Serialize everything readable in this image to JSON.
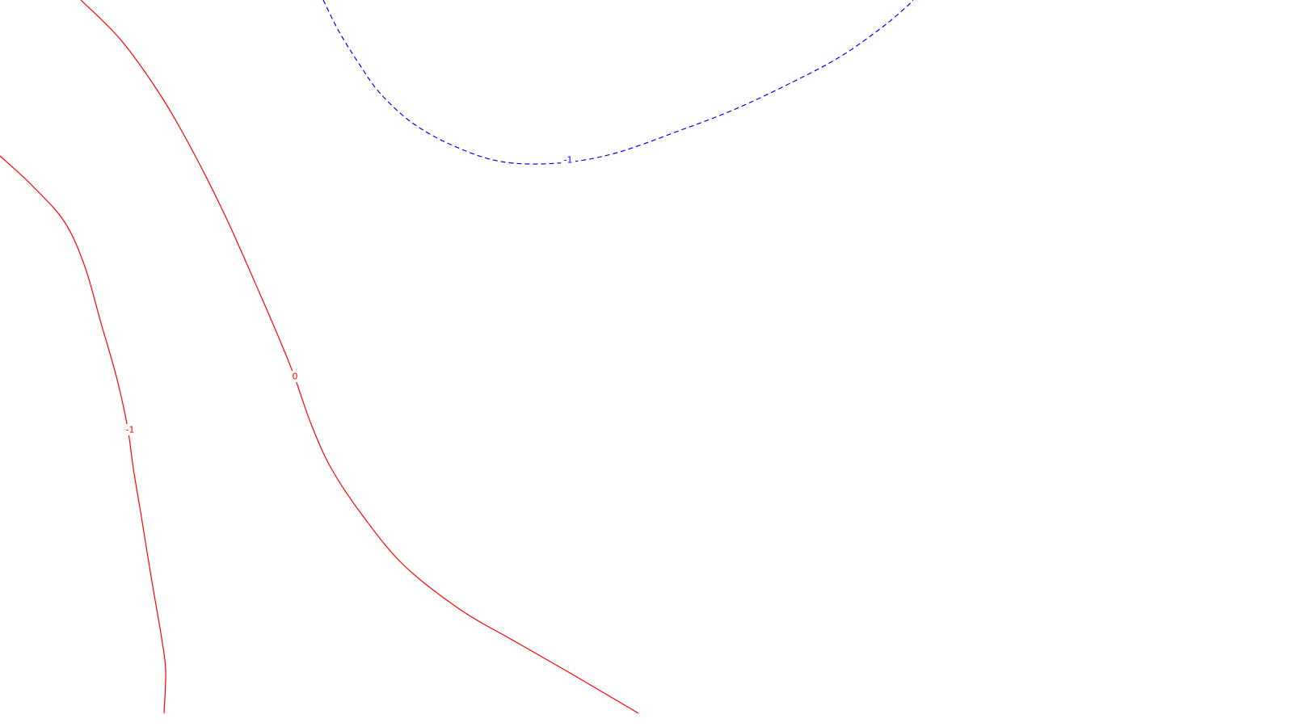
{
  "chart_data": {
    "type": "contour",
    "title": "",
    "xlabel": "",
    "ylabel": "",
    "grid": false,
    "legend": "none",
    "series": [
      {
        "level_label": "0",
        "color": "#ff0000",
        "style": "solid",
        "points": [
          [
            100,
            0
          ],
          [
            150,
            50
          ],
          [
            200,
            120
          ],
          [
            240,
            190
          ],
          [
            280,
            270
          ],
          [
            320,
            360
          ],
          [
            350,
            430
          ],
          [
            365,
            468
          ],
          [
            385,
            525
          ],
          [
            410,
            580
          ],
          [
            450,
            640
          ],
          [
            500,
            700
          ],
          [
            570,
            755
          ],
          [
            630,
            790
          ],
          [
            700,
            830
          ],
          [
            790,
            883
          ]
        ],
        "label_at": [
          365,
          466
        ]
      },
      {
        "level_label": "-1",
        "color": "#ff0000",
        "style": "solid",
        "points": [
          [
            0,
            193
          ],
          [
            40,
            230
          ],
          [
            80,
            275
          ],
          [
            105,
            330
          ],
          [
            125,
            400
          ],
          [
            145,
            470
          ],
          [
            158,
            530
          ],
          [
            165,
            580
          ],
          [
            175,
            640
          ],
          [
            188,
            720
          ],
          [
            200,
            790
          ],
          [
            205,
            830
          ],
          [
            203,
            883
          ]
        ],
        "label_at": [
          161,
          532
        ]
      },
      {
        "level_label": "-1",
        "color": "#0000ff",
        "style": "dashed",
        "points": [
          [
            400,
            0
          ],
          [
            420,
            40
          ],
          [
            445,
            80
          ],
          [
            470,
            115
          ],
          [
            510,
            152
          ],
          [
            560,
            180
          ],
          [
            620,
            200
          ],
          [
            690,
            202
          ],
          [
            760,
            190
          ],
          [
            840,
            162
          ],
          [
            910,
            135
          ],
          [
            980,
            102
          ],
          [
            1040,
            70
          ],
          [
            1090,
            35
          ],
          [
            1120,
            10
          ],
          [
            1130,
            0
          ]
        ],
        "label_at": [
          703,
          198
        ]
      }
    ]
  }
}
